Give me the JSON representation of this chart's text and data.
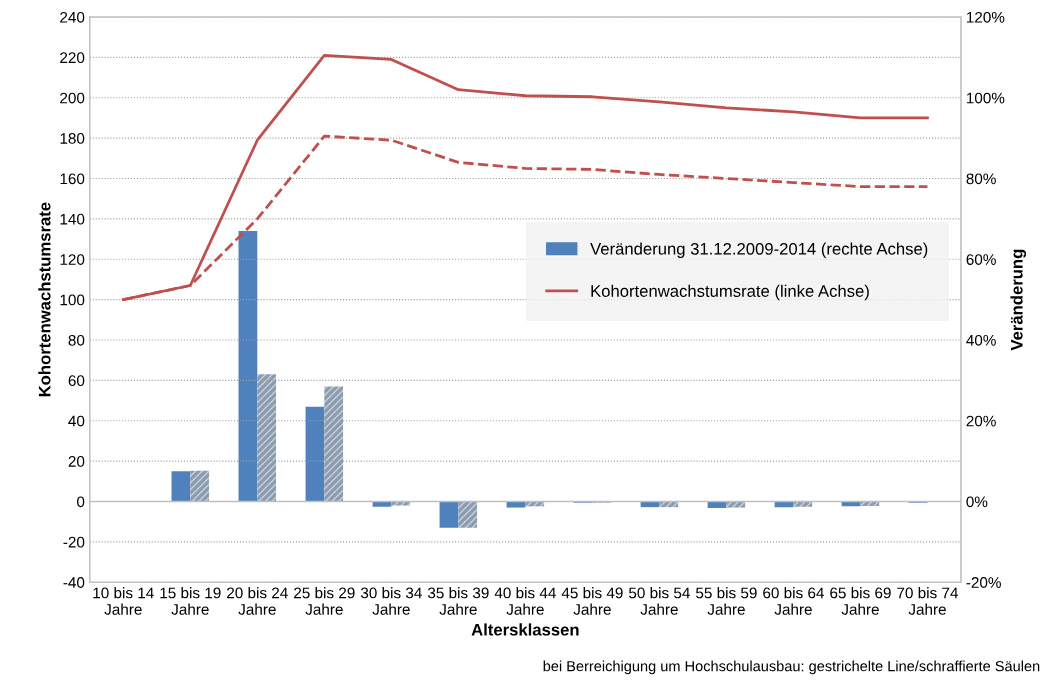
{
  "chart_data": {
    "type": "bar",
    "xlabel": "Altersklassen",
    "ylabel": "Kohortenwachstumsrate",
    "y2label": "Veränderung",
    "categories": [
      "10 bis 14\nJahre",
      "15 bis 19\nJahre",
      "20 bis 24\nJahre",
      "25 bis 29\nJahre",
      "30 bis 34\nJahre",
      "35 bis 39\nJahre",
      "40 bis 44\nJahre",
      "45 bis 49\nJahre",
      "50 bis 54\nJahre",
      "55 bis 59\nJahre",
      "60 bis 64\nJahre",
      "65 bis 69\nJahre",
      "70 bis 74\nJahre"
    ],
    "series": [
      {
        "name": "Veränderung 31.12.2009-2014 (rechte Achse)",
        "axis": "y2",
        "color": "#4f81bd",
        "values": [
          null,
          7.5,
          67,
          23.5,
          -1.3,
          -6.5,
          -1.5,
          -0.3,
          -1.4,
          -1.6,
          -1.4,
          -1.2,
          -0.3
        ]
      },
      {
        "axis": "y2",
        "color": "#8c9cb0",
        "values": [
          null,
          7.6,
          31.5,
          28.5,
          -1.0,
          -6.5,
          -1.2,
          -0.3,
          -1.4,
          -1.5,
          -1.3,
          -1.1,
          0
        ]
      },
      {
        "name": "Kohortenwachstumsrate (linke Achse)",
        "type": "line",
        "color": "#c0504d",
        "line_style": "solid",
        "values": [
          100,
          107,
          179,
          221,
          219,
          204,
          201,
          200.5,
          198,
          195,
          193,
          190,
          190
        ]
      },
      {
        "type": "line",
        "color": "#c0504d",
        "line_style": "dashed",
        "values": [
          100,
          107,
          140,
          181,
          179,
          168,
          165,
          164.5,
          162,
          160,
          158,
          156,
          156
        ]
      }
    ],
    "ylim": [
      -40,
      240
    ],
    "yticks": [
      -40,
      -20,
      0,
      20,
      40,
      60,
      80,
      100,
      120,
      140,
      160,
      180,
      200,
      220,
      240
    ],
    "y2lim": [
      -20,
      120
    ],
    "y2ticks": [
      {
        "value": -20,
        "label": "-20%"
      },
      {
        "value": 0,
        "label": "0%"
      },
      {
        "value": 20,
        "label": "20%"
      },
      {
        "value": 40,
        "label": "40%"
      },
      {
        "value": 60,
        "label": "60%"
      },
      {
        "value": 80,
        "label": "80%"
      },
      {
        "value": 100,
        "label": "100%"
      },
      {
        "value": 120,
        "label": "120%"
      }
    ],
    "grid": "y",
    "legend": "right",
    "marker": "none",
    "annotations": [
      "bei Berreichigung um Hochschulausbau: gestrichelte Line/schraffierte Säulen"
    ]
  }
}
